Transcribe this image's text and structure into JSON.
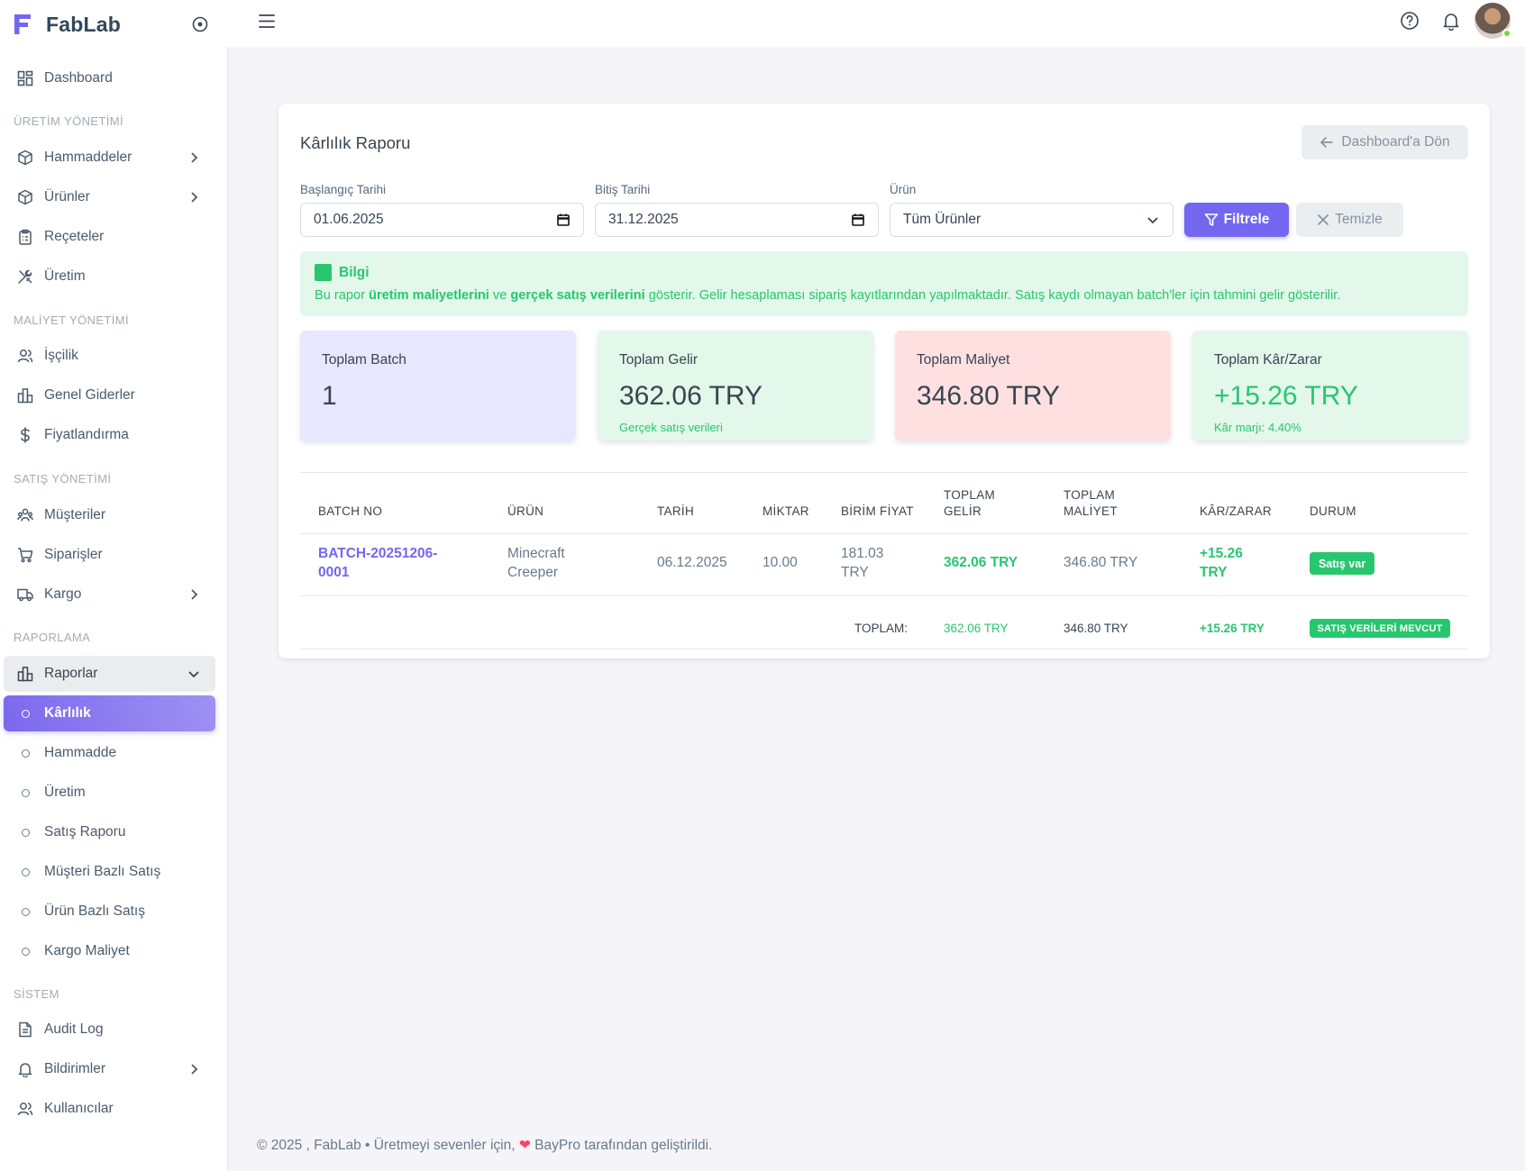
{
  "brand": {
    "name": "FabLab"
  },
  "sidebar": {
    "dashboard": "Dashboard",
    "sections": {
      "production": "ÜRETİM YÖNETİMİ",
      "cost": "MALİYET YÖNETİMİ",
      "sales": "SATIŞ YÖNETİMİ",
      "reporting": "RAPORLAMA",
      "system": "SİSTEM"
    },
    "items": {
      "hammaddeler": "Hammaddeler",
      "urunler": "Ürünler",
      "receteler": "Reçeteler",
      "uretim": "Üretim",
      "iscilik": "İşçilik",
      "genel_giderler": "Genel Giderler",
      "fiyatlandirma": "Fiyatlandırma",
      "musteriler": "Müşteriler",
      "siparisler": "Siparişler",
      "kargo": "Kargo",
      "raporlar": "Raporlar",
      "audit_log": "Audit Log",
      "bildirimler": "Bildirimler",
      "kullanicilar": "Kullanıcılar"
    },
    "report_subitems": [
      "Kârlılık",
      "Hammadde",
      "Üretim",
      "Satış Raporu",
      "Müşteri Bazlı Satış",
      "Ürün Bazlı Satış",
      "Kargo Maliyet"
    ]
  },
  "card": {
    "title": "Kârlılık Raporu",
    "back_label": "Dashboard'a Dön"
  },
  "filters": {
    "start_label": "Başlangıç Tarihi",
    "start_value": "01.06.2025",
    "end_label": "Bitiş Tarihi",
    "end_value": "31.12.2025",
    "product_label": "Ürün",
    "product_value": "Tüm Ürünler",
    "filter_btn": "Filtrele",
    "clear_btn": "Temizle"
  },
  "info": {
    "title": "Bilgi",
    "t1": "Bu rapor ",
    "b1": "üretim maliyetlerini",
    "t2": " ve ",
    "b2": "gerçek satış verilerini",
    "t3": " gösterir. Gelir hesaplaması sipariş kayıtlarından yapılmaktadır. Satış kaydı olmayan batch'ler için tahmini gelir gösterilir."
  },
  "stats": {
    "batch": {
      "label": "Toplam Batch",
      "value": "1"
    },
    "revenue": {
      "label": "Toplam Gelir",
      "value": "362.06 TRY",
      "sub": "Gerçek satış verileri"
    },
    "cost": {
      "label": "Toplam Maliyet",
      "value": "346.80 TRY"
    },
    "profit": {
      "label": "Toplam Kâr/Zarar",
      "value": "+15.26 TRY",
      "sub": "Kâr marjı: 4.40%"
    }
  },
  "table": {
    "headers": {
      "batch": "BATCH NO",
      "product": "ÜRÜN",
      "date": "TARİH",
      "qty": "MİKTAR",
      "unit_price": "BİRİM FİYAT",
      "total_revenue_1": "TOPLAM",
      "total_revenue_2": "GELİR",
      "total_cost_1": "TOPLAM",
      "total_cost_2": "MALİYET",
      "profit": "KÂR/ZARAR",
      "status": "DURUM"
    },
    "row": {
      "batch_1": "BATCH-20251206-",
      "batch_2": "0001",
      "product_1": "Minecraft",
      "product_2": "Creeper",
      "date": "06.12.2025",
      "qty": "10.00",
      "unit_price_1": "181.03",
      "unit_price_2": "TRY",
      "revenue": "362.06 TRY",
      "cost": "346.80 TRY",
      "profit_1": "+15.26",
      "profit_2": "TRY",
      "status": "Satış var"
    },
    "footer": {
      "label": "TOPLAM:",
      "revenue": "362.06 TRY",
      "cost": "346.80 TRY",
      "profit": "+15.26 TRY",
      "status": "SATIŞ VERİLERİ MEVCUT"
    }
  },
  "footer": {
    "text_1": "© 2025 , FabLab • Üretmeyi sevenler için, ",
    "heart": "❤",
    "text_2": " BayPro tarafından geliştirildi."
  },
  "colors": {
    "accent": "#7367f0",
    "success": "#28c76f",
    "stat_batch_bg": "#e7e7ff",
    "stat_revenue_bg": "#e3f7ea",
    "stat_cost_bg": "#ffe0e0",
    "stat_profit_bg": "#e3f7ea"
  }
}
